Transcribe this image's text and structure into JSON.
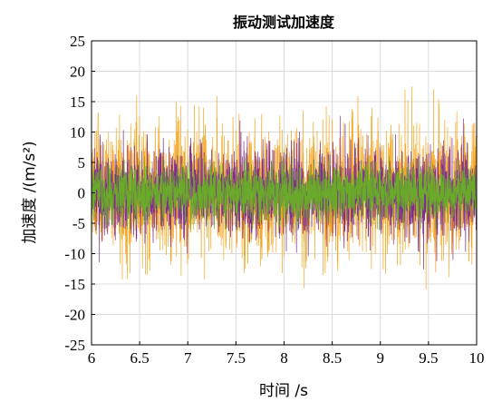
{
  "chart_data": {
    "type": "line",
    "title": "振动测试加速度",
    "xlabel": "时间 /s",
    "ylabel": "加速度 /(m/s²)",
    "xlim": [
      6,
      10
    ],
    "ylim": [
      -25,
      25
    ],
    "xticks": [
      6,
      6.5,
      7,
      7.5,
      8,
      8.5,
      9,
      9.5,
      10
    ],
    "yticks": [
      25,
      20,
      15,
      10,
      5,
      0,
      -5,
      -10,
      -15,
      -20,
      -25
    ],
    "xtick_labels": [
      "6",
      "6.5",
      "7",
      "7.5",
      "8",
      "8.5",
      "9",
      "9.5",
      "10"
    ],
    "ytick_labels": [
      "25",
      "20",
      "15",
      "10",
      "5",
      "0",
      "-5",
      "-10",
      "-15",
      "-20",
      "-25"
    ],
    "grid": true,
    "series": [
      {
        "color": "#f5a623",
        "envelope_typical": 12,
        "envelope_peak": 22
      },
      {
        "color": "#7e2f8e",
        "envelope_typical": 8,
        "envelope_peak": 13
      },
      {
        "color": "#6aaa2a",
        "envelope_typical": 5,
        "envelope_peak": 6
      }
    ]
  }
}
